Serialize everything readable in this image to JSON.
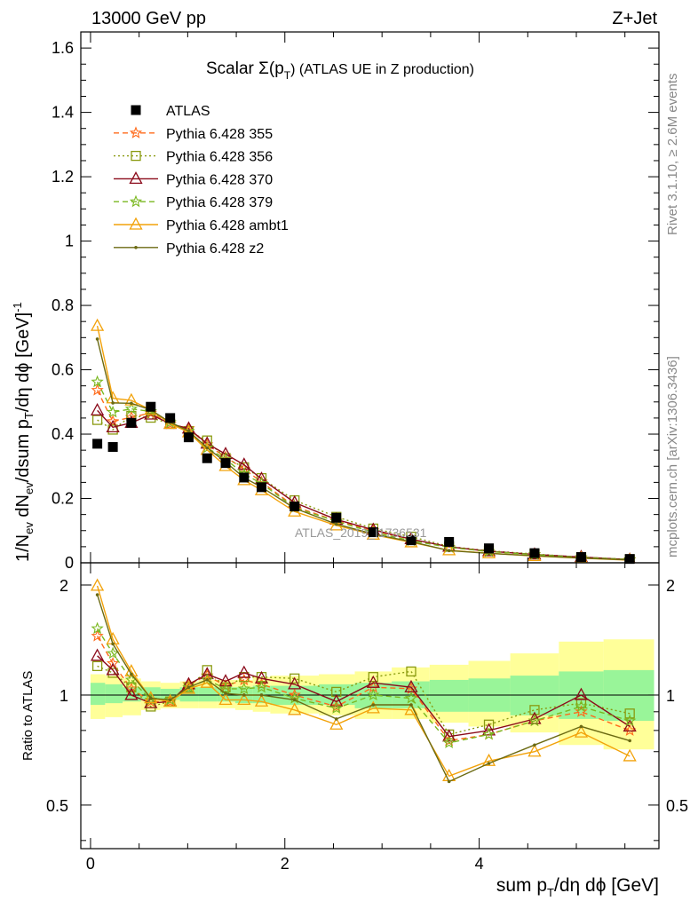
{
  "header": {
    "energy": "13000 GeV pp",
    "process": "Z+Jet",
    "title_main": "Scalar Σ(p",
    "title_sub": "T",
    "title_end": ")  (ATLAS UE in Z production)",
    "watermark": "ATLAS_2019_I1736531",
    "side_rivet": "Rivet 3.1.10, ≥ 2.6M events",
    "side_mcplots": "mcplots.cern.ch [arXiv:1306.3436]"
  },
  "colors": {
    "data": "#000000",
    "p355": "#ff6a1a",
    "p356": "#8a9a10",
    "p370": "#8b0a1a",
    "p379": "#7ab820",
    "ambt1": "#f2a20a",
    "z2": "#6b6a12",
    "band_inner": "#99f599",
    "band_outer": "#ffff99"
  },
  "chart_data": {
    "type": "line",
    "title": "Scalar Σ(pT) (ATLAS UE in Z production)",
    "xlabel": "sum p_T/dη dϕ [GeV]",
    "ylabel_main": "1/N_ev dN_ev/dsum p_T/dη dϕ [GeV]^-1",
    "ylabel_ratio": "Ratio to ATLAS",
    "xlim": [
      -0.1,
      5.85
    ],
    "ylim_main": [
      0,
      1.65
    ],
    "ylim_ratio": [
      0.38,
      2.3
    ],
    "x_ticks": [
      "0",
      "2",
      "4"
    ],
    "y_ticks_main": [
      "0",
      "0.2",
      "0.4",
      "0.6",
      "0.8",
      "1",
      "1.2",
      "1.4",
      "1.6"
    ],
    "y_ticks_ratio": [
      "0.5",
      "1",
      "2"
    ],
    "x": [
      0.07,
      0.23,
      0.42,
      0.62,
      0.82,
      1.01,
      1.2,
      1.39,
      1.58,
      1.76,
      2.1,
      2.53,
      2.91,
      3.3,
      3.69,
      4.1,
      4.57,
      5.05,
      5.55
    ],
    "band_edges": [
      0.0,
      0.15,
      0.33,
      0.52,
      0.72,
      0.92,
      1.11,
      1.3,
      1.49,
      1.67,
      1.85,
      2.35,
      2.72,
      3.1,
      3.49,
      3.89,
      4.32,
      4.82,
      5.28,
      5.8
    ],
    "band_inner": [
      [
        0.94,
        1.08
      ],
      [
        0.95,
        1.07
      ],
      [
        0.96,
        1.05
      ],
      [
        0.97,
        1.05
      ],
      [
        0.97,
        1.04
      ],
      [
        0.96,
        1.05
      ],
      [
        0.96,
        1.05
      ],
      [
        0.96,
        1.05
      ],
      [
        0.95,
        1.05
      ],
      [
        0.95,
        1.06
      ],
      [
        0.94,
        1.06
      ],
      [
        0.94,
        1.07
      ],
      [
        0.92,
        1.08
      ],
      [
        0.92,
        1.09
      ],
      [
        0.9,
        1.1
      ],
      [
        0.9,
        1.11
      ],
      [
        0.88,
        1.13
      ],
      [
        0.86,
        1.16
      ],
      [
        0.85,
        1.17
      ]
    ],
    "band_outer": [
      [
        0.86,
        1.14
      ],
      [
        0.87,
        1.13
      ],
      [
        0.88,
        1.11
      ],
      [
        0.91,
        1.09
      ],
      [
        0.92,
        1.08
      ],
      [
        0.92,
        1.09
      ],
      [
        0.92,
        1.1
      ],
      [
        0.92,
        1.1
      ],
      [
        0.91,
        1.1
      ],
      [
        0.9,
        1.12
      ],
      [
        0.89,
        1.13
      ],
      [
        0.88,
        1.14
      ],
      [
        0.86,
        1.16
      ],
      [
        0.86,
        1.19
      ],
      [
        0.84,
        1.21
      ],
      [
        0.82,
        1.24
      ],
      [
        0.79,
        1.3
      ],
      [
        0.73,
        1.4
      ],
      [
        0.71,
        1.42
      ]
    ],
    "data": {
      "name": "ATLAS",
      "values": [
        0.37,
        0.36,
        0.435,
        0.485,
        0.45,
        0.39,
        0.325,
        0.31,
        0.265,
        0.235,
        0.175,
        0.14,
        0.095,
        0.07,
        0.065,
        0.045,
        0.03,
        0.018,
        0.012
      ]
    },
    "series": [
      {
        "name": "Pythia 6.428 355",
        "color_key": "p355",
        "style": "dash",
        "marker": "star",
        "ratio": [
          1.45,
          1.22,
          1.04,
          0.96,
          0.96,
          1.07,
          1.13,
          1.06,
          1.1,
          1.07,
          1.0,
          0.93,
          1.05,
          1.04,
          0.75,
          0.78,
          0.85,
          0.9,
          0.8
        ]
      },
      {
        "name": "Pythia 6.428 356",
        "color_key": "p356",
        "style": "dot",
        "marker": "square",
        "ratio": [
          1.2,
          1.15,
          1.05,
          0.93,
          0.96,
          1.05,
          1.17,
          1.05,
          1.12,
          1.12,
          1.11,
          1.02,
          1.12,
          1.16,
          0.78,
          0.83,
          0.91,
          0.95,
          0.89
        ]
      },
      {
        "name": "Pythia 6.428 370",
        "color_key": "p370",
        "style": "solid",
        "marker": "triangle",
        "ratio": [
          1.28,
          1.17,
          1.0,
          0.95,
          0.96,
          1.07,
          1.14,
          1.09,
          1.15,
          1.11,
          1.07,
          0.96,
          1.08,
          1.05,
          0.77,
          0.8,
          0.86,
          1.0,
          0.82
        ]
      },
      {
        "name": "Pythia 6.428 379",
        "color_key": "p379",
        "style": "dash",
        "marker": "star",
        "ratio": [
          1.52,
          1.3,
          1.1,
          0.97,
          0.97,
          1.05,
          1.1,
          1.04,
          1.04,
          1.05,
          0.98,
          0.92,
          1.0,
          0.98,
          0.74,
          0.78,
          0.85,
          0.93,
          0.85
        ]
      },
      {
        "name": "Pythia 6.428 ambt1",
        "color_key": "ambt1",
        "style": "solid",
        "marker": "triangle",
        "ratio": [
          1.99,
          1.42,
          1.16,
          0.98,
          0.96,
          1.04,
          1.08,
          0.97,
          0.97,
          0.96,
          0.91,
          0.83,
          0.92,
          0.91,
          0.6,
          0.66,
          0.7,
          0.79,
          0.68
        ]
      },
      {
        "name": "Pythia 6.428 z2",
        "color_key": "z2",
        "style": "solid",
        "marker": "dot",
        "ratio": [
          1.88,
          1.38,
          1.14,
          0.98,
          0.97,
          1.05,
          1.1,
          1.01,
          1.0,
          1.0,
          0.97,
          0.86,
          0.94,
          0.94,
          0.58,
          0.65,
          0.73,
          0.82,
          0.75
        ]
      }
    ],
    "legend_placement": "top-left"
  }
}
